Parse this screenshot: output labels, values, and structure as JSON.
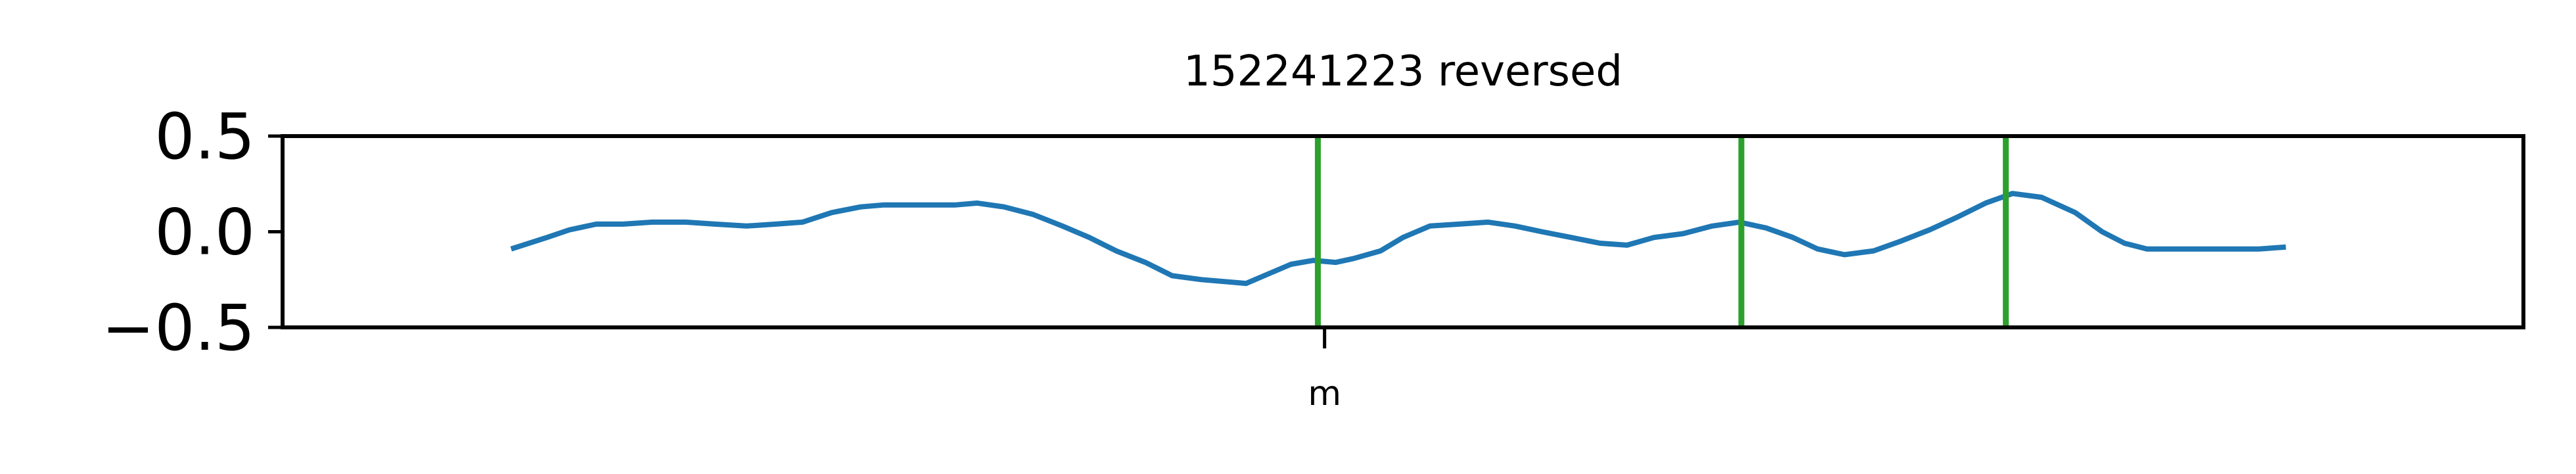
{
  "chart_data": {
    "type": "line",
    "title": "152241223 reversed",
    "xlabel": "",
    "ylabel": "",
    "x_ticks": [
      "m"
    ],
    "x_tick_positions": [
      0.465
    ],
    "y_ticks": [
      "0.5",
      "0.0",
      "−0.5"
    ],
    "y_tick_values": [
      0.5,
      0.0,
      -0.5
    ],
    "ylim": [
      -0.5,
      0.5
    ],
    "xlim": [
      0,
      1
    ],
    "grid": false,
    "series": [
      {
        "color": "#1f77b4",
        "x": [
          0.102,
          0.118,
          0.128,
          0.14,
          0.152,
          0.165,
          0.18,
          0.193,
          0.207,
          0.22,
          0.232,
          0.245,
          0.258,
          0.268,
          0.278,
          0.29,
          0.3,
          0.31,
          0.322,
          0.335,
          0.348,
          0.36,
          0.372,
          0.385,
          0.397,
          0.41,
          0.42,
          0.43,
          0.44,
          0.45,
          0.46,
          0.47,
          0.478,
          0.49,
          0.5,
          0.512,
          0.525,
          0.538,
          0.55,
          0.562,
          0.575,
          0.588,
          0.6,
          0.612,
          0.625,
          0.638,
          0.65,
          0.662,
          0.674,
          0.685,
          0.697,
          0.71,
          0.722,
          0.735,
          0.748,
          0.76,
          0.772,
          0.785,
          0.8,
          0.812,
          0.822,
          0.832,
          0.842,
          0.852,
          0.862,
          0.872,
          0.882,
          0.894
        ],
        "values": [
          -0.09,
          -0.03,
          0.01,
          0.04,
          0.04,
          0.05,
          0.05,
          0.04,
          0.03,
          0.04,
          0.05,
          0.1,
          0.13,
          0.14,
          0.14,
          0.14,
          0.14,
          0.15,
          0.13,
          0.09,
          0.03,
          -0.03,
          -0.1,
          -0.16,
          -0.23,
          -0.25,
          -0.26,
          -0.27,
          -0.22,
          -0.17,
          -0.15,
          -0.16,
          -0.14,
          -0.1,
          -0.03,
          0.03,
          0.04,
          0.05,
          0.03,
          0.0,
          -0.03,
          -0.06,
          -0.07,
          -0.03,
          -0.01,
          0.03,
          0.05,
          0.02,
          -0.03,
          -0.09,
          -0.12,
          -0.1,
          -0.05,
          0.01,
          0.08,
          0.15,
          0.2,
          0.18,
          0.1,
          0.0,
          -0.06,
          -0.09,
          -0.09,
          -0.09,
          -0.09,
          -0.09,
          -0.09,
          -0.08
        ]
      }
    ],
    "vertical_lines": {
      "color": "#2ca02c",
      "x": [
        0.462,
        0.651,
        0.769
      ]
    }
  }
}
